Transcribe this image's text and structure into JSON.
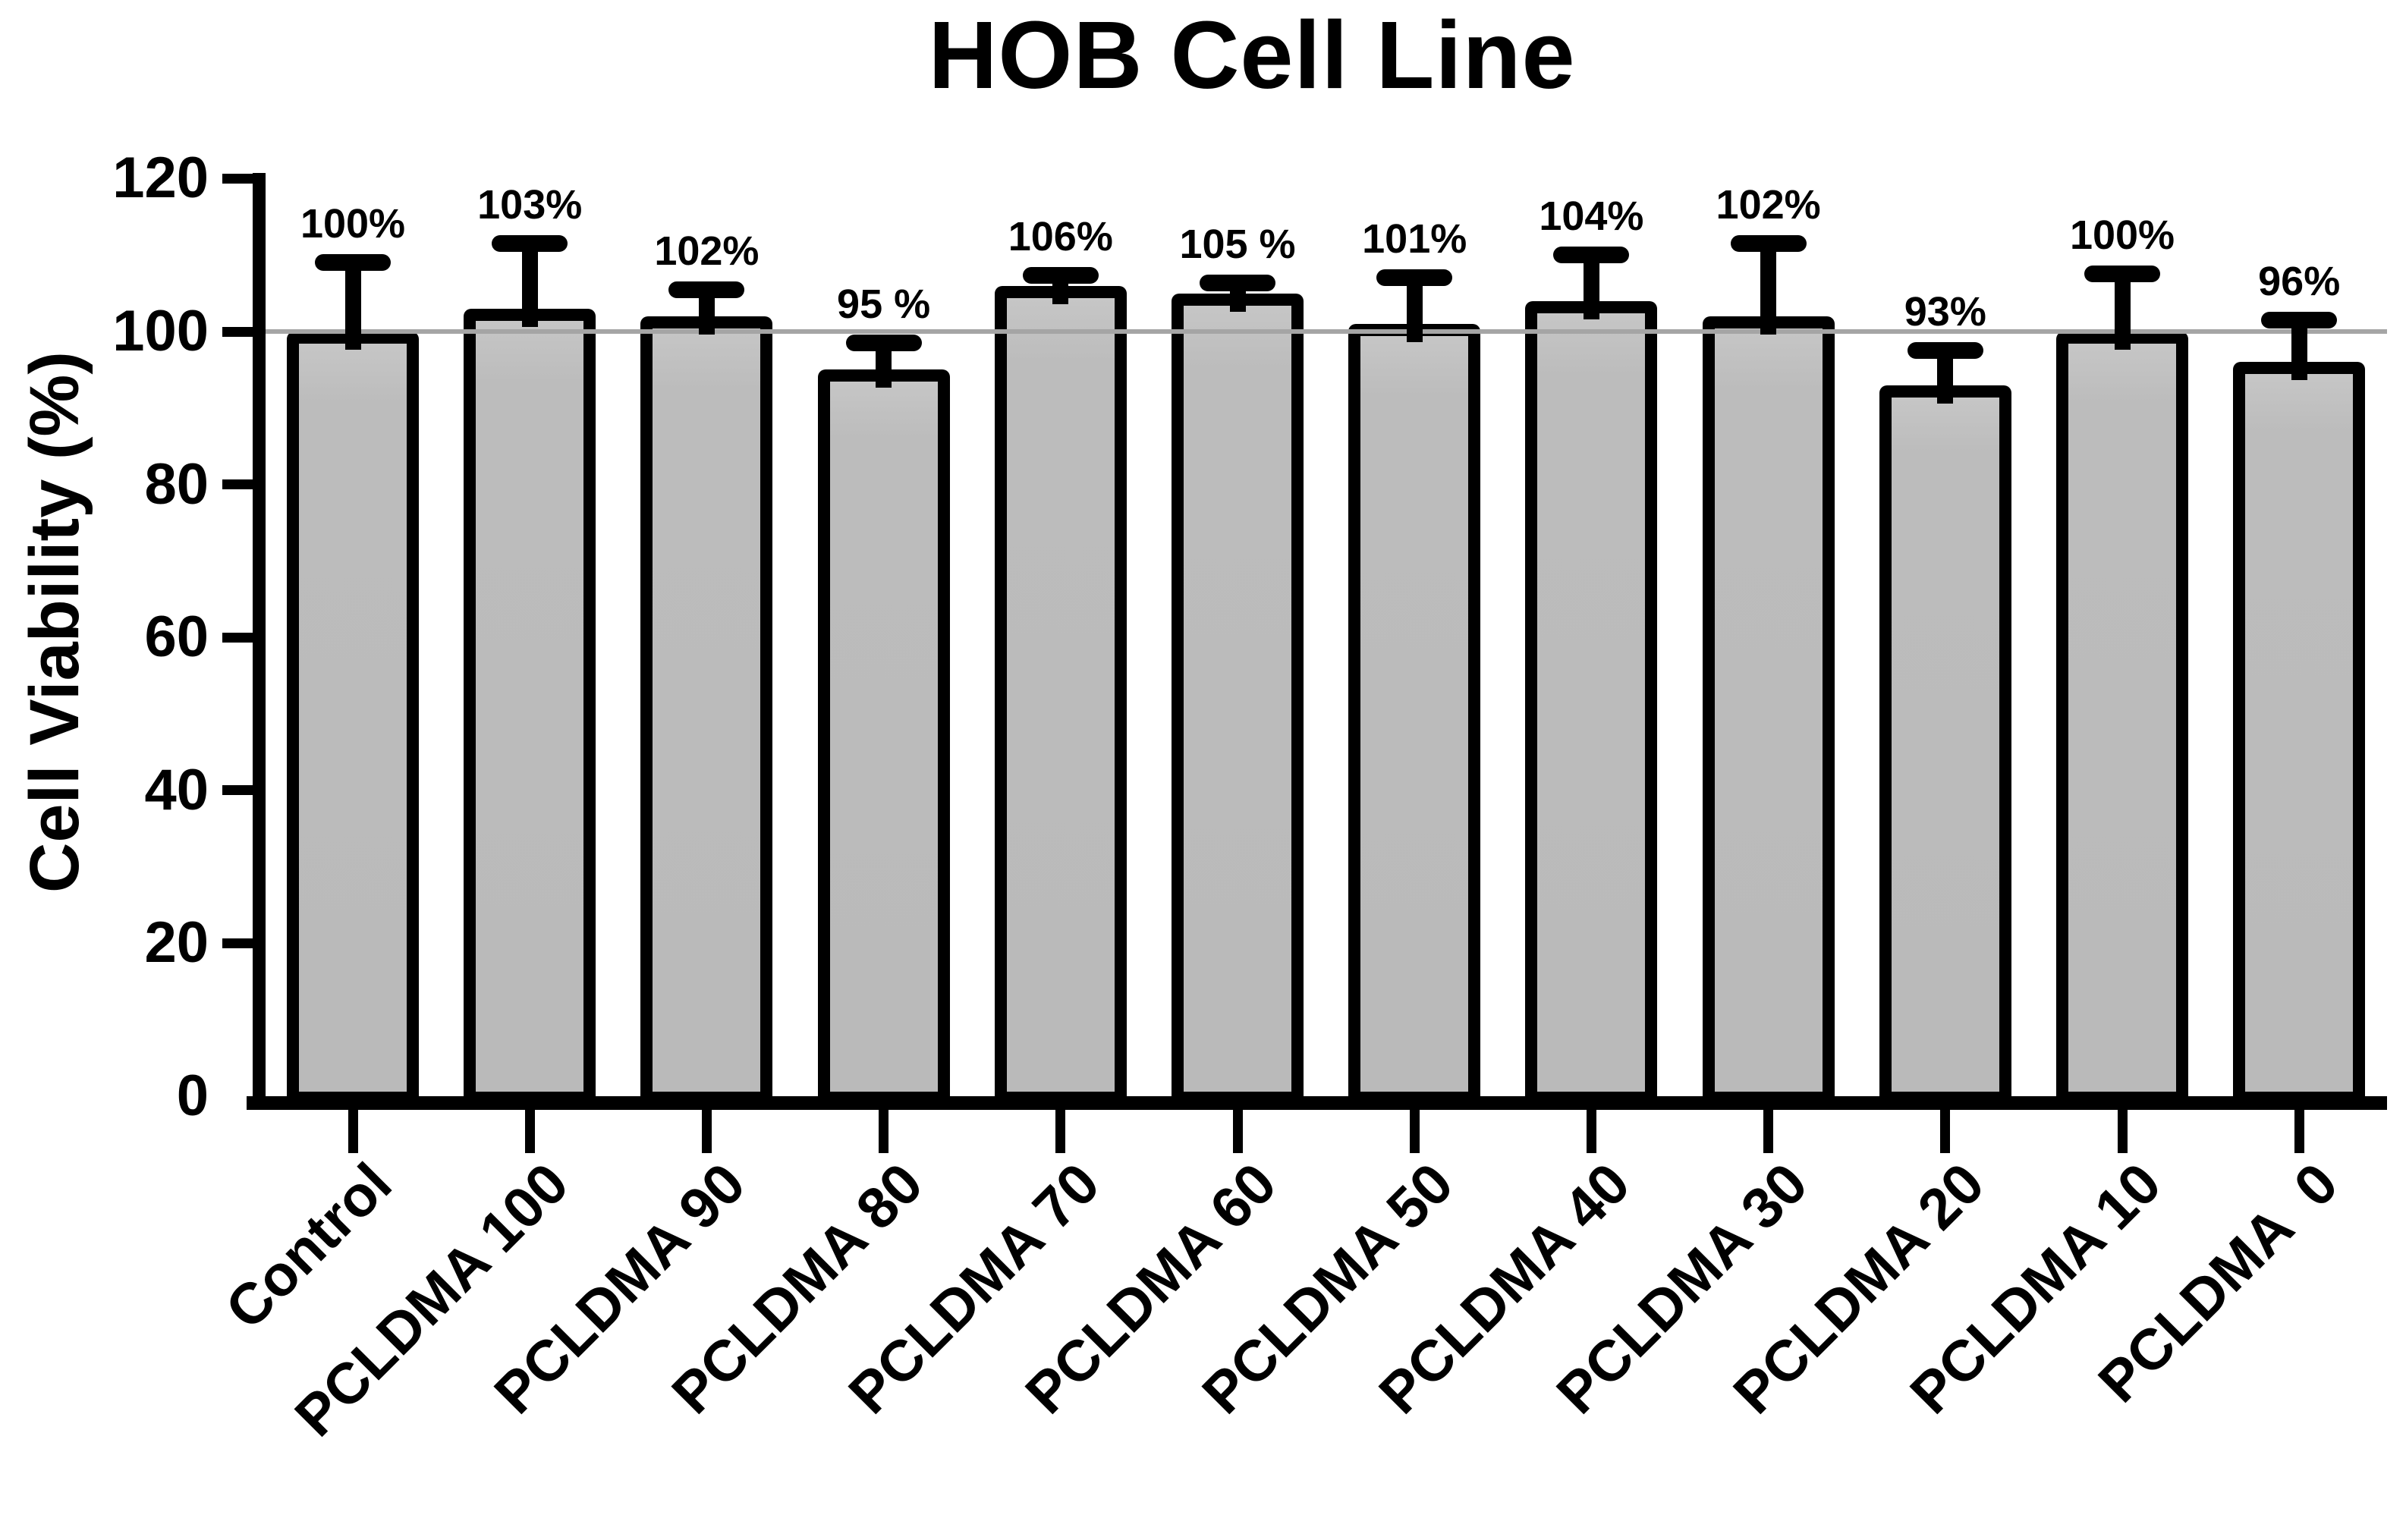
{
  "figure": {
    "title": "HOB Cell Line"
  },
  "chart_data": {
    "type": "bar",
    "title": "HOB Cell Line",
    "xlabel": "",
    "ylabel": "Cell Viability (%)",
    "ylim": [
      0,
      120
    ],
    "yticks": [
      0,
      20,
      40,
      60,
      80,
      100,
      120
    ],
    "reference_line_y": 100,
    "grid": false,
    "legend": "none",
    "categories": [
      "Control",
      "PCLDMA 100",
      "PCLDMA 90",
      "PCLDMA 80",
      "PCLDMA 70",
      "PCLDMA 60",
      "PCLDMA 50",
      "PCLDMA 40",
      "PCLDMA 30",
      "PCLDMA 20",
      "PCLDMA 10",
      "PCLDMA  0"
    ],
    "values": [
      100,
      103,
      102,
      95,
      106,
      105,
      101,
      104,
      102,
      93,
      100,
      96
    ],
    "value_labels": [
      "100%",
      "103%",
      "102%",
      "95 %",
      "106%",
      "105 %",
      "101%",
      "104%",
      "102%",
      "93%",
      "100%",
      "96%"
    ],
    "error_upper": [
      9,
      8.5,
      3.5,
      3.5,
      1.3,
      1.3,
      6,
      6,
      9.5,
      4.5,
      7.5,
      5.5
    ],
    "colors": {
      "background": "#ffffff",
      "bar_fill": "#bababa",
      "bar_border": "#000000",
      "error_bar": "#000000",
      "reference_line": "#a5a5a5",
      "text": "#000000"
    }
  }
}
